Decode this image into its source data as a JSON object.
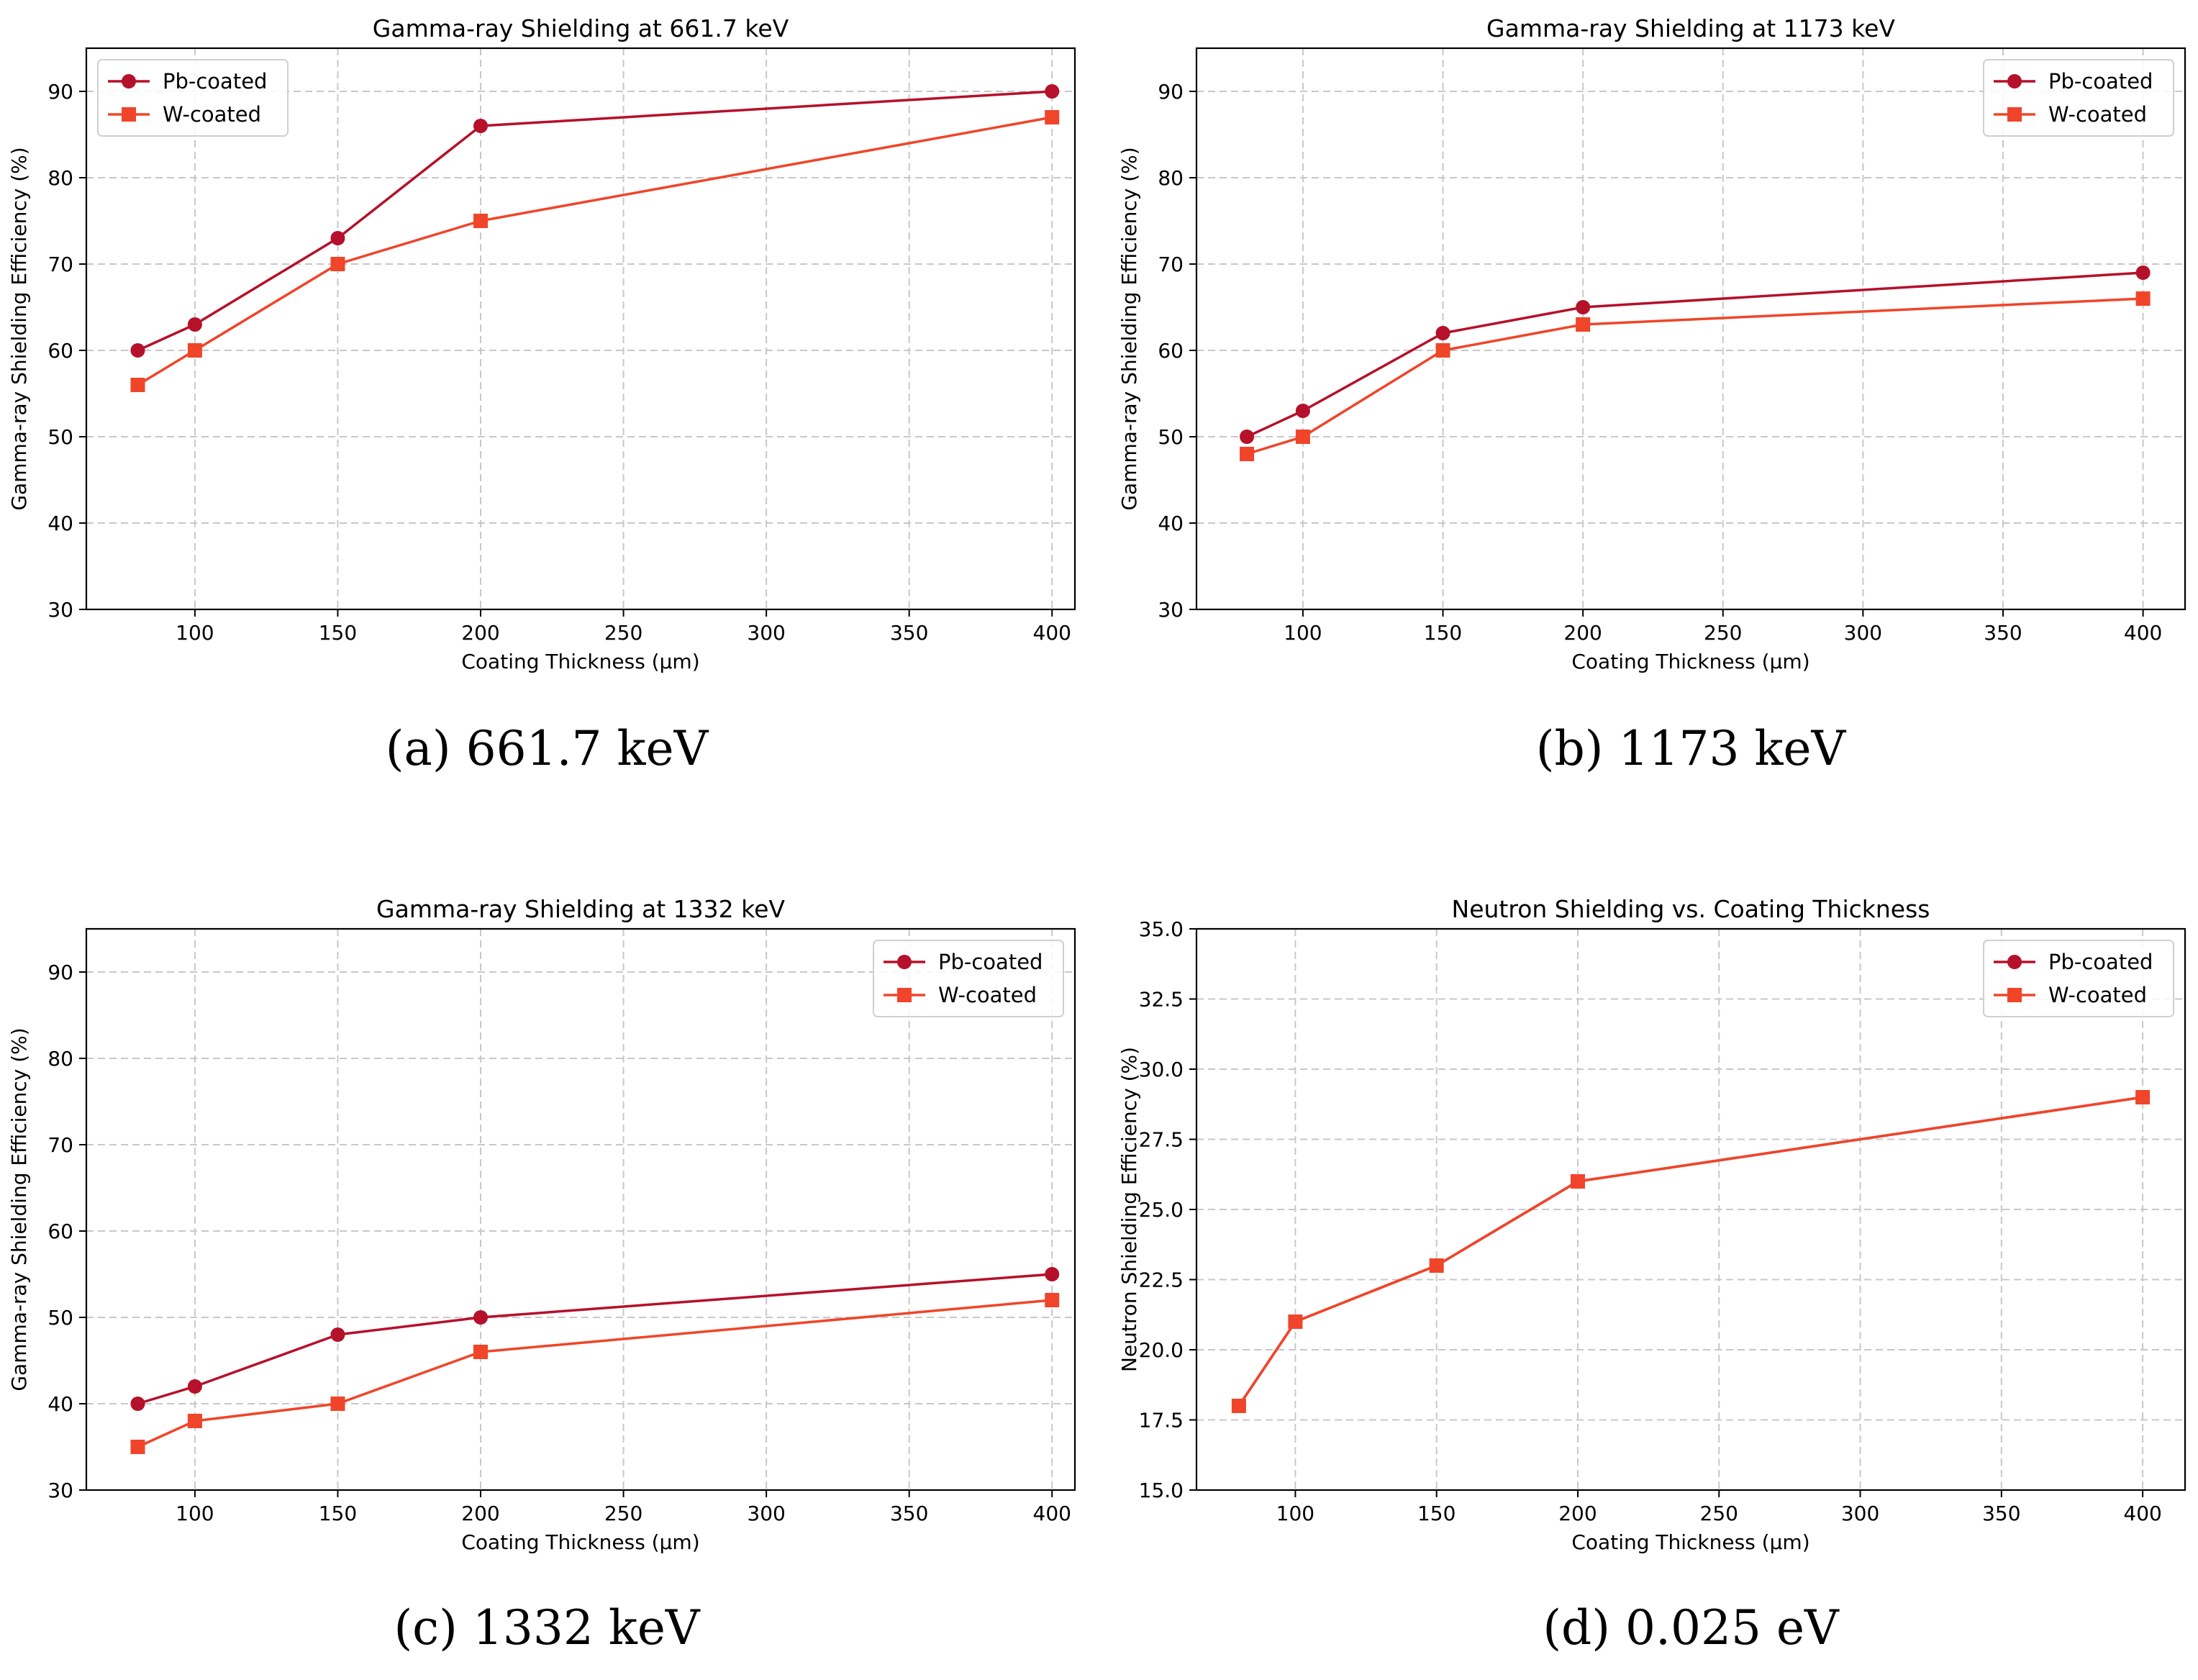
{
  "colors": {
    "pb": "#b5112a",
    "w": "#f0452a",
    "grid": "#c8c8c8"
  },
  "chart_data": [
    {
      "type": "line",
      "title": "Gamma-ray Shielding at 661.7 keV",
      "xlabel": "Coating Thickness (μm)",
      "ylabel": "Gamma-ray Shielding Efficiency (%)",
      "xlim": [
        62,
        408
      ],
      "ylim": [
        30,
        95
      ],
      "xticks": [
        100,
        150,
        200,
        250,
        300,
        350,
        400
      ],
      "xtick_labels": [
        "100",
        "150",
        "200",
        "250",
        "300",
        "350",
        "400"
      ],
      "yticks": [
        30,
        40,
        50,
        60,
        70,
        80,
        90
      ],
      "ytick_labels": [
        "30",
        "40",
        "50",
        "60",
        "70",
        "80",
        "90"
      ],
      "legend": "top-left",
      "x": [
        80,
        100,
        150,
        200,
        400
      ],
      "series": [
        {
          "name": "Pb-coated",
          "marker": "circle",
          "values": [
            60,
            63,
            73,
            86,
            90
          ]
        },
        {
          "name": "W-coated",
          "marker": "square",
          "values": [
            56,
            60,
            70,
            75,
            87
          ]
        }
      ],
      "caption_letter": "(a)",
      "caption_text": " 661.7 keV"
    },
    {
      "type": "line",
      "title": "Gamma-ray Shielding at 1173 keV",
      "xlabel": "Coating Thickness (μm)",
      "ylabel": "Gamma-ray Shielding Efficiency (%)",
      "xlim": [
        62,
        415
      ],
      "ylim": [
        30,
        95
      ],
      "xticks": [
        100,
        150,
        200,
        250,
        300,
        350,
        400
      ],
      "xtick_labels": [
        "100",
        "150",
        "200",
        "250",
        "300",
        "350",
        "400"
      ],
      "yticks": [
        30,
        40,
        50,
        60,
        70,
        80,
        90
      ],
      "ytick_labels": [
        "30",
        "40",
        "50",
        "60",
        "70",
        "80",
        "90"
      ],
      "legend": "top-right",
      "x": [
        80,
        100,
        150,
        200,
        400
      ],
      "series": [
        {
          "name": "Pb-coated",
          "marker": "circle",
          "values": [
            50,
            53,
            62,
            65,
            69
          ]
        },
        {
          "name": "W-coated",
          "marker": "square",
          "values": [
            48,
            50,
            60,
            63,
            66
          ]
        }
      ],
      "caption_letter": "(b)",
      "caption_text": " 1173 keV"
    },
    {
      "type": "line",
      "title": "Gamma-ray Shielding at 1332 keV",
      "xlabel": "Coating Thickness (μm)",
      "ylabel": "Gamma-ray Shielding Efficiency (%)",
      "xlim": [
        62,
        408
      ],
      "ylim": [
        30,
        95
      ],
      "xticks": [
        100,
        150,
        200,
        250,
        300,
        350,
        400
      ],
      "xtick_labels": [
        "100",
        "150",
        "200",
        "250",
        "300",
        "350",
        "400"
      ],
      "yticks": [
        30,
        40,
        50,
        60,
        70,
        80,
        90
      ],
      "ytick_labels": [
        "30",
        "40",
        "50",
        "60",
        "70",
        "80",
        "90"
      ],
      "legend": "top-right",
      "x": [
        80,
        100,
        150,
        200,
        400
      ],
      "series": [
        {
          "name": "Pb-coated",
          "marker": "circle",
          "values": [
            40,
            42,
            48,
            50,
            55
          ]
        },
        {
          "name": "W-coated",
          "marker": "square",
          "values": [
            35,
            38,
            40,
            46,
            52
          ]
        }
      ],
      "caption_letter": "(c)",
      "caption_text": " 1332 keV"
    },
    {
      "type": "line",
      "title": "Neutron Shielding vs. Coating Thickness",
      "xlabel": "Coating Thickness (μm)",
      "ylabel": "Neutron Shielding Efficiency (%)",
      "xlim": [
        65,
        415
      ],
      "ylim": [
        15,
        35
      ],
      "xticks": [
        100,
        150,
        200,
        250,
        300,
        350,
        400
      ],
      "xtick_labels": [
        "100",
        "150",
        "200",
        "250",
        "300",
        "350",
        "400"
      ],
      "yticks": [
        15,
        17.5,
        20,
        22.5,
        25,
        27.5,
        30,
        32.5,
        35
      ],
      "ytick_labels": [
        "15.0",
        "17.5",
        "20.0",
        "22.5",
        "25.0",
        "27.5",
        "30.0",
        "32.5",
        "35.0"
      ],
      "legend": "top-right",
      "x": [
        80,
        100,
        150,
        200,
        400
      ],
      "series": [
        {
          "name": "Pb-coated",
          "marker": "circle",
          "values": [
            18,
            21,
            23,
            26,
            29
          ]
        },
        {
          "name": "W-coated",
          "marker": "square",
          "values": [
            18,
            21,
            23,
            26,
            29
          ]
        }
      ],
      "caption_letter": "(d)",
      "caption_text": " 0.025 eV"
    }
  ]
}
